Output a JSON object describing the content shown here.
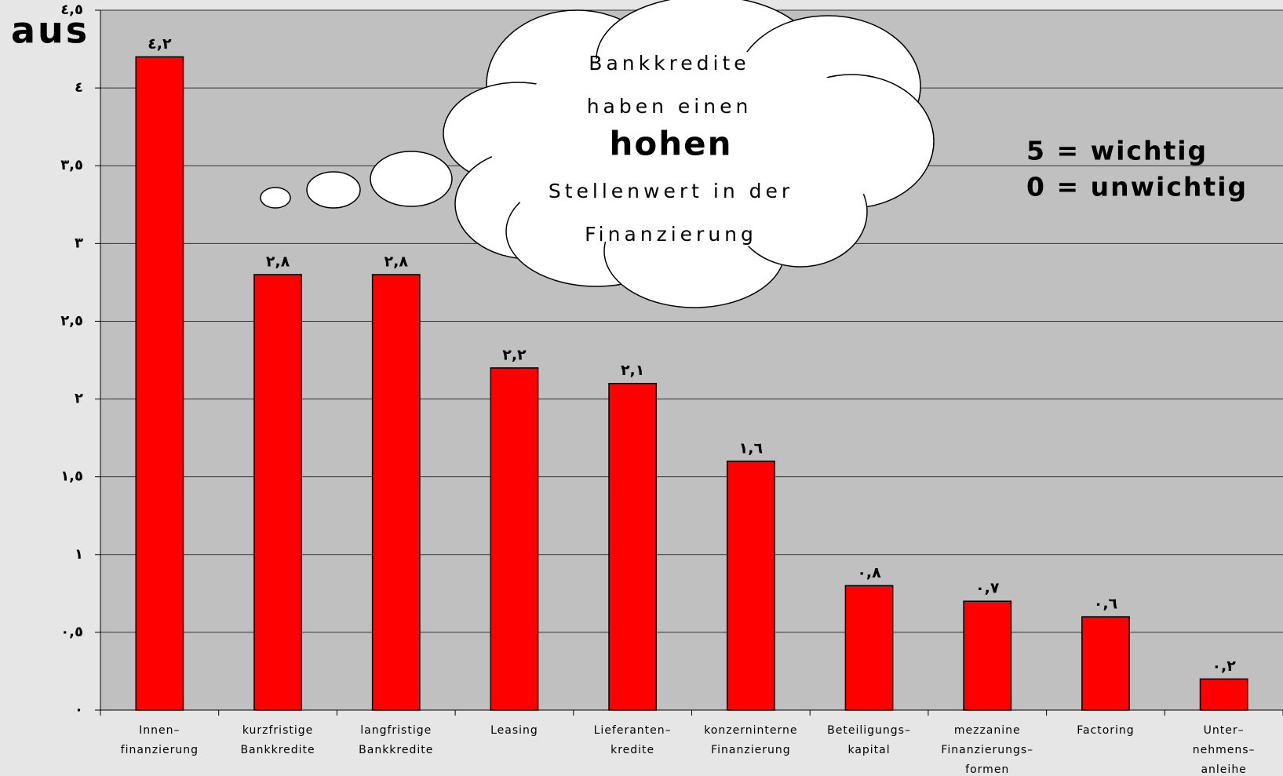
{
  "chart_data": {
    "type": "bar",
    "title": "aus",
    "categories": [
      [
        "Innen–",
        "finanzierung"
      ],
      [
        "kurzfristige",
        "Bankkredite"
      ],
      [
        "langfristige",
        "Bankkredite"
      ],
      [
        "Leasing"
      ],
      [
        "Lieferanten–",
        "kredite"
      ],
      [
        "konzerninterne",
        "Finanzierung"
      ],
      [
        "Beteiligungs–",
        "kapital"
      ],
      [
        "mezzanine",
        "Finanzierungs–",
        "formen"
      ],
      [
        "Factoring"
      ],
      [
        "Unter–",
        "nehmens–",
        "anleihe"
      ]
    ],
    "values": [
      4.2,
      2.8,
      2.8,
      2.2,
      2.1,
      1.6,
      0.8,
      0.7,
      0.6,
      0.2
    ],
    "value_labels": [
      "٤,٢",
      "٢,٨",
      "٢,٨",
      "٢,٢",
      "٢,١",
      "١,٦",
      "٠,٨",
      "٠,٧",
      "٠,٦",
      "٠,٢"
    ],
    "color": "#ff0000",
    "ylim": [
      0,
      4.5
    ],
    "yticks": [
      {
        "value": 0,
        "label": "٠"
      },
      {
        "value": 0.5,
        "label": "٠,٥"
      },
      {
        "value": 1,
        "label": "١"
      },
      {
        "value": 1.5,
        "label": "١,٥"
      },
      {
        "value": 2,
        "label": "٢"
      },
      {
        "value": 2.5,
        "label": "٢,٥"
      },
      {
        "value": 3,
        "label": "٣"
      },
      {
        "value": 3.5,
        "label": "٣,٥"
      },
      {
        "value": 4,
        "label": "٤"
      },
      {
        "value": 4.5,
        "label": "٤,٥"
      }
    ],
    "grid": true,
    "annotations": {
      "cloud": [
        "Bankkredite",
        "haben einen",
        "hohen",
        "Stellenwert in der",
        "Finanzierung"
      ],
      "scale_note": [
        "5 = wichtig",
        "0 = unwichtig"
      ]
    }
  }
}
